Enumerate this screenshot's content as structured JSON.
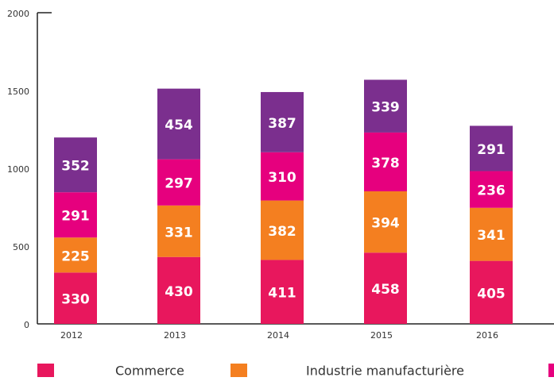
{
  "chart_data": {
    "type": "stacked_bar",
    "categories": [
      "2012",
      "2013",
      "2014",
      "2015",
      "2016"
    ],
    "series": [
      {
        "name": "Commerce",
        "color": "#e8175d",
        "values": [
          330,
          430,
          411,
          458,
          405
        ]
      },
      {
        "name": "Industrie manufacturière",
        "color": "#f47f20",
        "values": [
          225,
          331,
          382,
          394,
          341
        ]
      },
      {
        "color": "#e6007e",
        "values": [
          291,
          297,
          310,
          378,
          236
        ]
      },
      {
        "color": "#7b2f8e",
        "values": [
          352,
          454,
          387,
          339,
          291
        ]
      }
    ],
    "ylim": [
      0,
      2000
    ],
    "yticks": [
      0,
      500,
      1000,
      1500,
      2000
    ]
  }
}
